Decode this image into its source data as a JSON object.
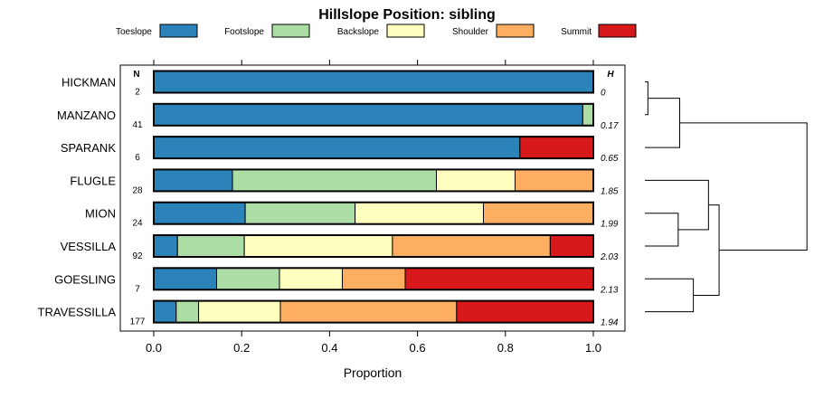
{
  "chart_data": {
    "type": "bar",
    "orientation": "horizontal-stacked",
    "title": "Hillslope Position: sibling",
    "xlabel": "Proportion",
    "xlim": [
      0,
      1
    ],
    "xticks": [
      0.0,
      0.2,
      0.4,
      0.6,
      0.8,
      1.0
    ],
    "xtick_labels": [
      "0.0",
      "0.2",
      "0.4",
      "0.6",
      "0.8",
      "1.0"
    ],
    "n_header": "N",
    "h_header": "H",
    "series": [
      {
        "name": "Toeslope",
        "color": "#2B83BA"
      },
      {
        "name": "Footslope",
        "color": "#ABDDA4"
      },
      {
        "name": "Backslope",
        "color": "#FFFFBF"
      },
      {
        "name": "Shoulder",
        "color": "#FDAE61"
      },
      {
        "name": "Summit",
        "color": "#D7191C"
      }
    ],
    "categories": [
      "HICKMAN",
      "MANZANO",
      "SPARANK",
      "FLUGLE",
      "MION",
      "VESSILLA",
      "GOESLING",
      "TRAVESSILLA"
    ],
    "rows": [
      {
        "label": "HICKMAN",
        "n": "2",
        "h": "0",
        "values": [
          1.0,
          0,
          0,
          0,
          0
        ]
      },
      {
        "label": "MANZANO",
        "n": "41",
        "h": "0.17",
        "values": [
          0.976,
          0.024,
          0,
          0,
          0
        ]
      },
      {
        "label": "SPARANK",
        "n": "6",
        "h": "0.65",
        "values": [
          0.833,
          0,
          0,
          0,
          0.167
        ]
      },
      {
        "label": "FLUGLE",
        "n": "28",
        "h": "1.85",
        "values": [
          0.179,
          0.464,
          0.179,
          0.178,
          0
        ]
      },
      {
        "label": "MION",
        "n": "24",
        "h": "1.99",
        "values": [
          0.208,
          0.25,
          0.292,
          0.25,
          0
        ]
      },
      {
        "label": "VESSILLA",
        "n": "92",
        "h": "2.03",
        "values": [
          0.054,
          0.152,
          0.337,
          0.359,
          0.098
        ]
      },
      {
        "label": "GOESLING",
        "n": "7",
        "h": "2.13",
        "values": [
          0.143,
          0.143,
          0.143,
          0.143,
          0.428
        ]
      },
      {
        "label": "TRAVESSILLA",
        "n": "177",
        "h": "1.94",
        "values": [
          0.051,
          0.051,
          0.186,
          0.401,
          0.311
        ]
      }
    ],
    "dendrogram": {
      "leaf_order": [
        "HICKMAN",
        "MANZANO",
        "SPARANK",
        "FLUGLE",
        "MION",
        "VESSILLA",
        "GOESLING",
        "TRAVESSILLA"
      ],
      "merges": [
        {
          "a": "L0",
          "b": "L1",
          "height": 0.1
        },
        {
          "a": "L4",
          "b": "L5",
          "height": 1.1
        },
        {
          "a": "L6",
          "b": "L7",
          "height": 1.6
        },
        {
          "a": "L3",
          "b": "M1",
          "height": 2.1
        },
        {
          "a": "M0",
          "b": "L2",
          "height": 1.15
        },
        {
          "a": "M3",
          "b": "M2",
          "height": 2.45
        },
        {
          "a": "M4",
          "b": "M5",
          "height": 5.35
        }
      ]
    }
  }
}
